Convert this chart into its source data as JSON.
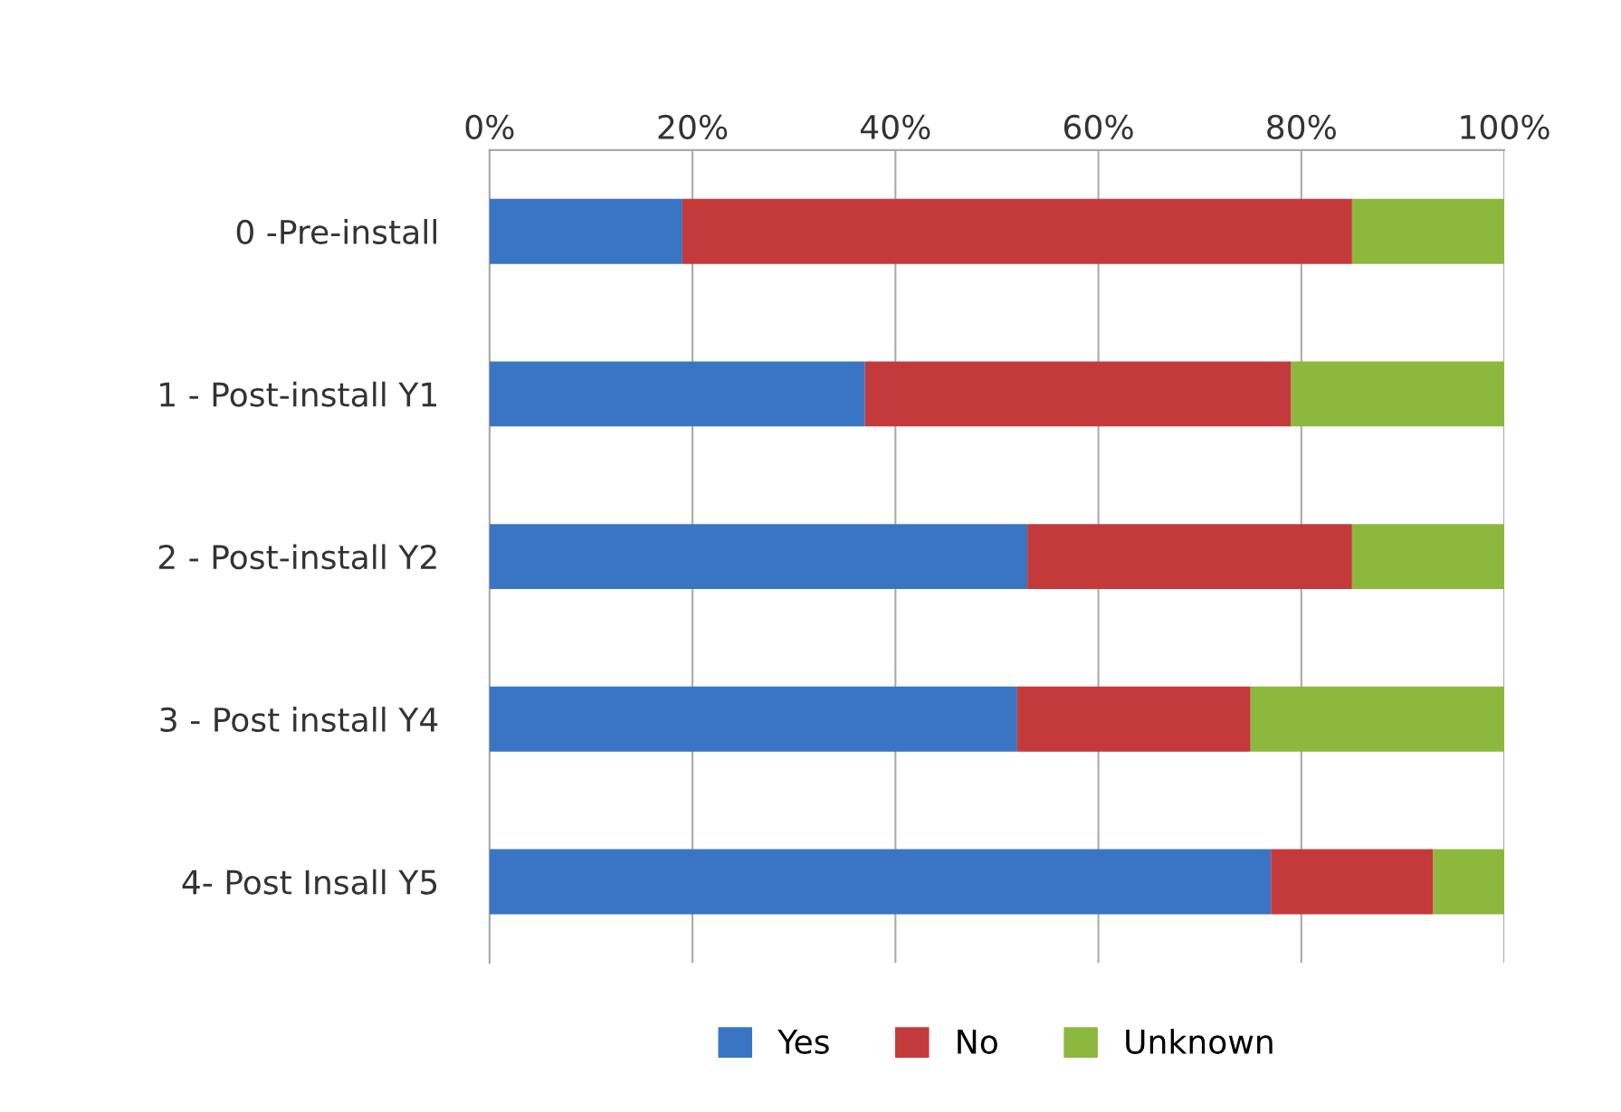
{
  "chart_data": {
    "type": "bar",
    "orientation": "horizontal",
    "stacked": true,
    "categories": [
      "0 -Pre-install",
      "1 - Post-install Y1",
      "2 - Post-install Y2",
      "3 - Post install Y4",
      "4- Post Insall Y5"
    ],
    "series": [
      {
        "name": "Yes",
        "color": "#3a75c4",
        "values": [
          19,
          37,
          53,
          52,
          77
        ]
      },
      {
        "name": "No",
        "color": "#c43a3a",
        "values": [
          66,
          42,
          32,
          23,
          16
        ]
      },
      {
        "name": "Unknown",
        "color": "#8db83e",
        "values": [
          15,
          21,
          15,
          25,
          7
        ]
      }
    ],
    "xlim": [
      0,
      100
    ],
    "xticks": [
      {
        "value": 0,
        "label": "0%"
      },
      {
        "value": 20,
        "label": "20%"
      },
      {
        "value": 40,
        "label": "40%"
      },
      {
        "value": 60,
        "label": "60%"
      },
      {
        "value": 80,
        "label": "80%"
      },
      {
        "value": 100,
        "label": "100%"
      }
    ],
    "grid": "x",
    "legend": "bottom"
  }
}
